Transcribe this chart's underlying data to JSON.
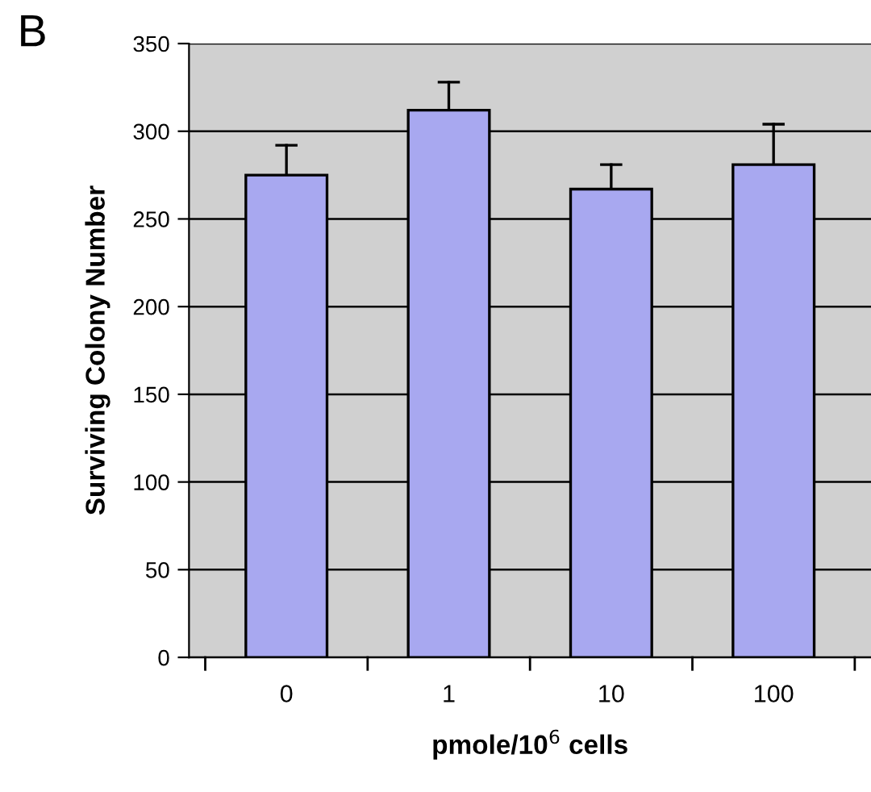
{
  "chart_data": {
    "type": "bar",
    "xlabel": "pmole/10$^{6}$ cells",
    "ylabel": "Surviving Colony Number",
    "categories": [
      "0",
      "1",
      "10",
      "100"
    ],
    "values": [
      275,
      312,
      267,
      281
    ],
    "errors": [
      [
        275,
        292
      ],
      [
        312,
        328
      ],
      [
        267,
        281
      ],
      [
        281,
        304
      ]
    ],
    "color": "#a8a8f0",
    "ylim": [
      0,
      350
    ],
    "yticks": [
      0,
      50,
      100,
      150,
      200,
      250,
      300,
      350
    ],
    "grid": "y",
    "legend": false,
    "annotations": [
      "B"
    ]
  }
}
